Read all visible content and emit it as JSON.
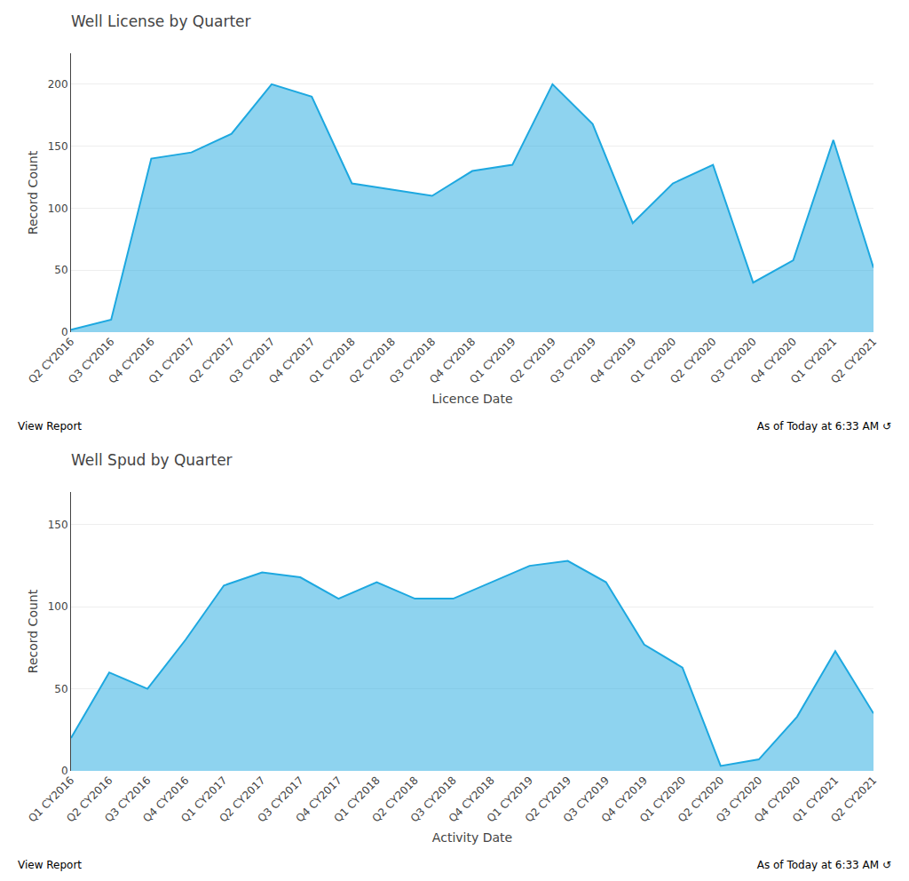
{
  "chart_data": [
    {
      "type": "area",
      "title": "Well License by Quarter",
      "x_label": "Licence Date",
      "y_label": "Record Count",
      "categories": [
        "Q2 CY2016",
        "Q3 CY2016",
        "Q4 CY2016",
        "Q1 CY2017",
        "Q2 CY2017",
        "Q3 CY2017",
        "Q4 CY2017",
        "Q1 CY2018",
        "Q2 CY2018",
        "Q3 CY2018",
        "Q4 CY2018",
        "Q1 CY2019",
        "Q2 CY2019",
        "Q3 CY2019",
        "Q4 CY2019",
        "Q1 CY2020",
        "Q2 CY2020",
        "Q3 CY2020",
        "Q4 CY2020",
        "Q1 CY2021",
        "Q2 CY2021"
      ],
      "values": [
        2,
        10,
        140,
        145,
        160,
        200,
        190,
        120,
        115,
        110,
        130,
        135,
        200,
        168,
        88,
        120,
        135,
        40,
        58,
        155,
        52
      ],
      "color": "#1da8e0",
      "ylim": [
        0,
        225
      ],
      "yticks": [
        0,
        50,
        100,
        150,
        200
      ],
      "grid": true,
      "annotations": [
        "View Report",
        "As of Today at 6:33 AM  ↺"
      ]
    },
    {
      "type": "area",
      "title": "Well Spud by Quarter",
      "x_label": "Activity Date",
      "y_label": "Record Count",
      "categories": [
        "Q1 CY2016",
        "Q2 CY2016",
        "Q3 CY2016",
        "Q4 CY2016",
        "Q1 CY2017",
        "Q2 CY2017",
        "Q3 CY2017",
        "Q4 CY2017",
        "Q1 CY2018",
        "Q2 CY2018",
        "Q3 CY2018",
        "Q4 CY2018",
        "Q1 CY2019",
        "Q2 CY2019",
        "Q3 CY2019",
        "Q4 CY2019",
        "Q1 CY2020",
        "Q2 CY2020",
        "Q3 CY2020",
        "Q4 CY2020",
        "Q1 CY2021",
        "Q2 CY2021"
      ],
      "values": [
        20,
        60,
        50,
        80,
        113,
        121,
        118,
        105,
        115,
        105,
        105,
        115,
        125,
        128,
        115,
        77,
        63,
        3,
        7,
        33,
        73,
        35
      ],
      "color": "#1da8e0",
      "ylim": [
        0,
        170
      ],
      "yticks": [
        0,
        50,
        100,
        150
      ],
      "grid": true,
      "annotations": [
        "View Report",
        "As of Today at 6:33 AM  ↺"
      ]
    }
  ]
}
